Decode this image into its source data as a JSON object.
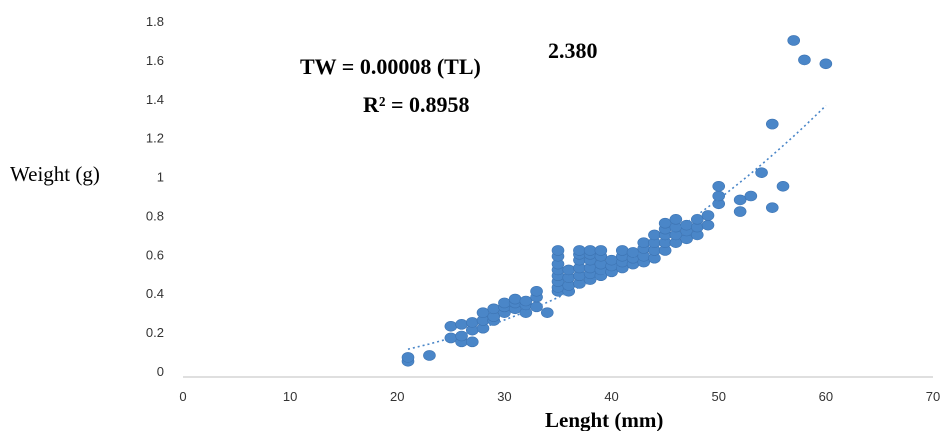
{
  "chart_data": {
    "type": "scatter",
    "xlabel": "Lenght (mm)",
    "ylabel": "Weight (g)",
    "xlim": [
      0,
      70
    ],
    "ylim": [
      0,
      1.8
    ],
    "x_ticks": [
      0,
      10,
      20,
      30,
      40,
      50,
      60,
      70
    ],
    "x_tick_labels": [
      "0",
      "10",
      "20",
      "30",
      "40",
      "50",
      "60",
      "70"
    ],
    "y_ticks": [
      0,
      0.2,
      0.4,
      0.6,
      0.8,
      1.0,
      1.2,
      1.4,
      1.6,
      1.8
    ],
    "y_tick_labels": [
      "0",
      "0.2",
      "0.4",
      "0.6",
      "0.8",
      "1",
      "1.2",
      "1.4",
      "1.6",
      "1.8"
    ],
    "grid": false,
    "legend": "none",
    "marker_color": "#4a86c8",
    "trendline_color": "#4a86c8",
    "annotations": {
      "equation_main": "TW = 0.00008 (TL)",
      "equation_exponent": "2.380",
      "r_squared": "R² = 0.8958"
    },
    "trendline": {
      "type": "power",
      "a": 8e-05,
      "b": 2.38,
      "x_start": 21,
      "x_end": 60
    },
    "points": [
      [
        21,
        0.05
      ],
      [
        21,
        0.07
      ],
      [
        23,
        0.08
      ],
      [
        25,
        0.17
      ],
      [
        25,
        0.23
      ],
      [
        26,
        0.15
      ],
      [
        26,
        0.18
      ],
      [
        26,
        0.24
      ],
      [
        27,
        0.15
      ],
      [
        27,
        0.21
      ],
      [
        27,
        0.25
      ],
      [
        28,
        0.22
      ],
      [
        28,
        0.26
      ],
      [
        28,
        0.3
      ],
      [
        29,
        0.26
      ],
      [
        29,
        0.28
      ],
      [
        29,
        0.32
      ],
      [
        30,
        0.3
      ],
      [
        30,
        0.33
      ],
      [
        30,
        0.35
      ],
      [
        31,
        0.32
      ],
      [
        31,
        0.35
      ],
      [
        31,
        0.37
      ],
      [
        32,
        0.3
      ],
      [
        32,
        0.34
      ],
      [
        32,
        0.36
      ],
      [
        33,
        0.33
      ],
      [
        33,
        0.38
      ],
      [
        33,
        0.41
      ],
      [
        34,
        0.3
      ],
      [
        35,
        0.41
      ],
      [
        35,
        0.43
      ],
      [
        35,
        0.46
      ],
      [
        35,
        0.49
      ],
      [
        35,
        0.52
      ],
      [
        35,
        0.55
      ],
      [
        35,
        0.59
      ],
      [
        35,
        0.62
      ],
      [
        36,
        0.41
      ],
      [
        36,
        0.44
      ],
      [
        36,
        0.48
      ],
      [
        36,
        0.52
      ],
      [
        37,
        0.45
      ],
      [
        37,
        0.49
      ],
      [
        37,
        0.53
      ],
      [
        37,
        0.57
      ],
      [
        37,
        0.6
      ],
      [
        37,
        0.62
      ],
      [
        38,
        0.47
      ],
      [
        38,
        0.5
      ],
      [
        38,
        0.53
      ],
      [
        38,
        0.57
      ],
      [
        38,
        0.6
      ],
      [
        38,
        0.62
      ],
      [
        39,
        0.49
      ],
      [
        39,
        0.52
      ],
      [
        39,
        0.55
      ],
      [
        39,
        0.59
      ],
      [
        39,
        0.62
      ],
      [
        40,
        0.51
      ],
      [
        40,
        0.54
      ],
      [
        40,
        0.57
      ],
      [
        41,
        0.53
      ],
      [
        41,
        0.56
      ],
      [
        41,
        0.59
      ],
      [
        41,
        0.62
      ],
      [
        42,
        0.55
      ],
      [
        42,
        0.58
      ],
      [
        42,
        0.61
      ],
      [
        43,
        0.56
      ],
      [
        43,
        0.59
      ],
      [
        43,
        0.63
      ],
      [
        43,
        0.66
      ],
      [
        44,
        0.58
      ],
      [
        44,
        0.62
      ],
      [
        44,
        0.66
      ],
      [
        44,
        0.7
      ],
      [
        45,
        0.62
      ],
      [
        45,
        0.66
      ],
      [
        45,
        0.7
      ],
      [
        45,
        0.73
      ],
      [
        45,
        0.76
      ],
      [
        46,
        0.66
      ],
      [
        46,
        0.7
      ],
      [
        46,
        0.74
      ],
      [
        46,
        0.78
      ],
      [
        47,
        0.68
      ],
      [
        47,
        0.72
      ],
      [
        47,
        0.75
      ],
      [
        48,
        0.7
      ],
      [
        48,
        0.74
      ],
      [
        48,
        0.78
      ],
      [
        49,
        0.75
      ],
      [
        49,
        0.8
      ],
      [
        50,
        0.86
      ],
      [
        50,
        0.9
      ],
      [
        50,
        0.95
      ],
      [
        52,
        0.82
      ],
      [
        52,
        0.88
      ],
      [
        53,
        0.9
      ],
      [
        54,
        1.02
      ],
      [
        55,
        0.84
      ],
      [
        55,
        1.27
      ],
      [
        56,
        0.95
      ],
      [
        57,
        1.7
      ],
      [
        58,
        1.6
      ],
      [
        60,
        1.58
      ]
    ]
  }
}
